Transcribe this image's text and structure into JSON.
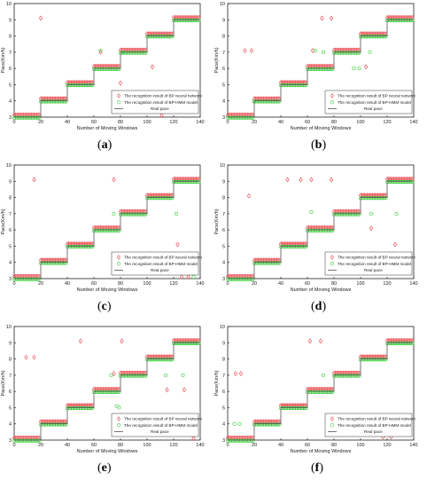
{
  "common": {
    "xlabel": "Number of Moving Windows",
    "ylabel": "Pace(Km/h)",
    "xticks": [
      0,
      20,
      40,
      60,
      80,
      100,
      120,
      140
    ],
    "yticks": [
      3,
      4,
      5,
      6,
      7,
      8,
      9,
      10
    ],
    "legend": [
      "The recognition result of BP neural network",
      "The recognition result of BP-HMM model",
      "Real pace"
    ],
    "colors": {
      "bp": "#e8434a",
      "hmm": "#3fcf3f",
      "real": "#555555"
    }
  },
  "panels": [
    {
      "caption_open": "(",
      "caption_letter": "a",
      "caption_close": ")"
    },
    {
      "caption_open": "(",
      "caption_letter": "b",
      "caption_close": ")"
    },
    {
      "caption_open": "(",
      "caption_letter": "c",
      "caption_close": ")"
    },
    {
      "caption_open": "(",
      "caption_letter": "d",
      "caption_close": ")"
    },
    {
      "caption_open": "(",
      "caption_letter": "e",
      "caption_close": ")"
    },
    {
      "caption_open": "(",
      "caption_letter": "f",
      "caption_close": ")"
    }
  ],
  "chart_data": [
    {
      "type": "scatter",
      "xlabel": "Number of Moving Windows",
      "ylabel": "Pace(Km/h)",
      "xlim": [
        0,
        140
      ],
      "ylim": [
        3,
        10
      ],
      "legend_position": "bottom-right",
      "real_pace": [
        [
          0,
          3
        ],
        [
          20,
          3
        ],
        [
          20,
          4
        ],
        [
          40,
          4
        ],
        [
          40,
          5
        ],
        [
          60,
          5
        ],
        [
          60,
          6
        ],
        [
          80,
          6
        ],
        [
          80,
          7
        ],
        [
          100,
          7
        ],
        [
          100,
          8
        ],
        [
          120,
          8
        ],
        [
          120,
          9
        ],
        [
          139,
          9
        ]
      ],
      "bp_outliers": [
        [
          20,
          9.1
        ],
        [
          65,
          7.0
        ],
        [
          80,
          5.1
        ],
        [
          104,
          6.1
        ],
        [
          111,
          3.1
        ]
      ],
      "hmm_outliers": [
        [
          65,
          7.1
        ],
        [
          82,
          7.0
        ]
      ]
    },
    {
      "type": "scatter",
      "xlabel": "Number of Moving Windows",
      "ylabel": "Pace(Km/h)",
      "xlim": [
        0,
        140
      ],
      "ylim": [
        3,
        10
      ],
      "legend_position": "bottom-right",
      "real_pace": [
        [
          0,
          3
        ],
        [
          20,
          3
        ],
        [
          20,
          4
        ],
        [
          40,
          4
        ],
        [
          40,
          5
        ],
        [
          60,
          5
        ],
        [
          60,
          6
        ],
        [
          80,
          6
        ],
        [
          80,
          7
        ],
        [
          100,
          7
        ],
        [
          100,
          8
        ],
        [
          120,
          8
        ],
        [
          120,
          9
        ],
        [
          139,
          9
        ]
      ],
      "bp_outliers": [
        [
          13,
          7.1
        ],
        [
          18,
          7.1
        ],
        [
          64,
          7.1
        ],
        [
          71,
          9.1
        ],
        [
          78,
          9.1
        ],
        [
          104,
          6.1
        ]
      ],
      "hmm_outliers": [
        [
          20,
          4.0
        ],
        [
          66,
          7.1
        ],
        [
          72,
          7.0
        ],
        [
          95,
          6.0
        ],
        [
          99,
          6.0
        ],
        [
          107,
          7.0
        ]
      ]
    },
    {
      "type": "scatter",
      "xlabel": "Number of Moving Windows",
      "ylabel": "Pace(Km/h)",
      "xlim": [
        0,
        140
      ],
      "ylim": [
        3,
        10
      ],
      "legend_position": "bottom-right",
      "real_pace": [
        [
          0,
          3
        ],
        [
          20,
          3
        ],
        [
          20,
          4
        ],
        [
          40,
          4
        ],
        [
          40,
          5
        ],
        [
          60,
          5
        ],
        [
          60,
          6
        ],
        [
          80,
          6
        ],
        [
          80,
          7
        ],
        [
          100,
          7
        ],
        [
          100,
          8
        ],
        [
          120,
          8
        ],
        [
          120,
          9
        ],
        [
          139,
          9
        ]
      ],
      "bp_outliers": [
        [
          15,
          9.1
        ],
        [
          75,
          9.1
        ],
        [
          123,
          5.1
        ],
        [
          126,
          3.1
        ],
        [
          131,
          3.1
        ]
      ],
      "hmm_outliers": [
        [
          75,
          7.0
        ],
        [
          122,
          7.0
        ],
        [
          135,
          3.1
        ]
      ]
    },
    {
      "type": "scatter",
      "xlabel": "Number of Moving Windows",
      "ylabel": "Pace(Km/h)",
      "xlim": [
        0,
        140
      ],
      "ylim": [
        3,
        10
      ],
      "legend_position": "bottom-right",
      "real_pace": [
        [
          0,
          3
        ],
        [
          20,
          3
        ],
        [
          20,
          4
        ],
        [
          40,
          4
        ],
        [
          40,
          5
        ],
        [
          60,
          5
        ],
        [
          60,
          6
        ],
        [
          80,
          6
        ],
        [
          80,
          7
        ],
        [
          100,
          7
        ],
        [
          100,
          8
        ],
        [
          120,
          8
        ],
        [
          120,
          9
        ],
        [
          139,
          9
        ]
      ],
      "bp_outliers": [
        [
          16,
          8.1
        ],
        [
          45,
          9.1
        ],
        [
          55,
          9.1
        ],
        [
          63,
          9.1
        ],
        [
          78,
          9.1
        ],
        [
          108,
          6.1
        ],
        [
          126,
          5.1
        ]
      ],
      "hmm_outliers": [
        [
          63,
          7.1
        ],
        [
          108,
          7.0
        ],
        [
          127,
          7.0
        ]
      ]
    },
    {
      "type": "scatter",
      "xlabel": "Number of Moving Windows",
      "ylabel": "Pace(Km/h)",
      "xlim": [
        0,
        140
      ],
      "ylim": [
        3,
        10
      ],
      "legend_position": "bottom-right",
      "real_pace": [
        [
          0,
          3
        ],
        [
          20,
          3
        ],
        [
          20,
          4
        ],
        [
          40,
          4
        ],
        [
          40,
          5
        ],
        [
          60,
          5
        ],
        [
          60,
          6
        ],
        [
          80,
          6
        ],
        [
          80,
          7
        ],
        [
          100,
          7
        ],
        [
          100,
          8
        ],
        [
          120,
          8
        ],
        [
          120,
          9
        ],
        [
          139,
          9
        ]
      ],
      "bp_outliers": [
        [
          9,
          8.1
        ],
        [
          15,
          8.1
        ],
        [
          50,
          9.1
        ],
        [
          75,
          7.1
        ],
        [
          81,
          9.1
        ],
        [
          115,
          6.1
        ],
        [
          128,
          6.1
        ],
        [
          135,
          3.1
        ]
      ],
      "hmm_outliers": [
        [
          73,
          7.0
        ],
        [
          77,
          5.1
        ],
        [
          79,
          5.0
        ],
        [
          114,
          7.0
        ],
        [
          127,
          7.0
        ]
      ]
    },
    {
      "type": "scatter",
      "xlabel": "Number of Moving Windows",
      "ylabel": "Pace(Km/h)",
      "xlim": [
        0,
        140
      ],
      "ylim": [
        3,
        10
      ],
      "legend_position": "bottom-right",
      "real_pace": [
        [
          0,
          3
        ],
        [
          20,
          3
        ],
        [
          20,
          4
        ],
        [
          40,
          4
        ],
        [
          40,
          5
        ],
        [
          60,
          5
        ],
        [
          60,
          6
        ],
        [
          80,
          6
        ],
        [
          80,
          7
        ],
        [
          100,
          7
        ],
        [
          100,
          8
        ],
        [
          120,
          8
        ],
        [
          120,
          9
        ],
        [
          139,
          9
        ]
      ],
      "bp_outliers": [
        [
          6,
          7.1
        ],
        [
          10,
          7.1
        ],
        [
          62,
          9.1
        ],
        [
          70,
          9.1
        ],
        [
          117,
          3.2
        ],
        [
          123,
          3.2
        ]
      ],
      "hmm_outliers": [
        [
          5,
          4.0
        ],
        [
          9,
          4.0
        ],
        [
          72,
          7.0
        ]
      ]
    }
  ]
}
